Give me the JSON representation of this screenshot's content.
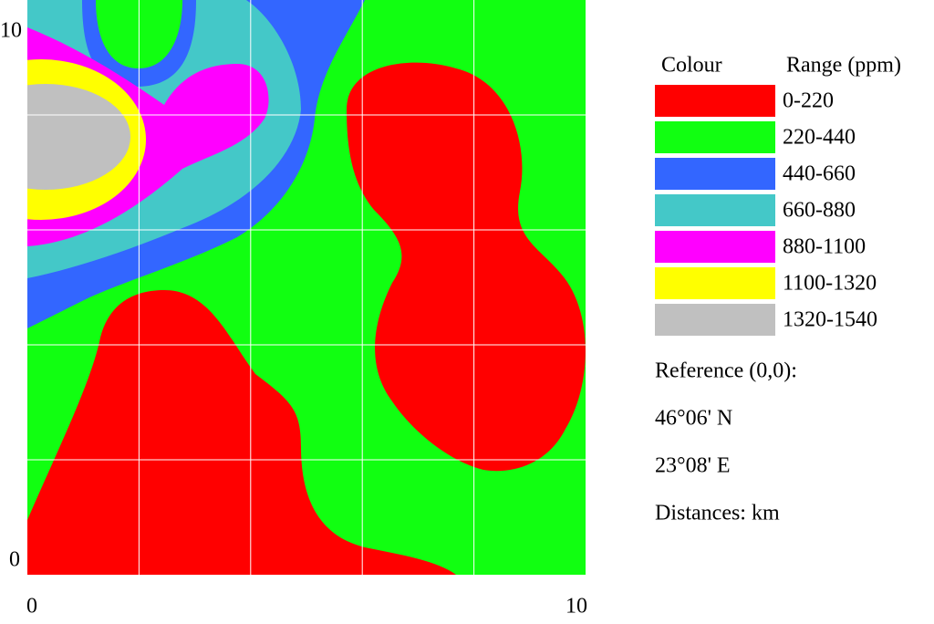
{
  "axes": {
    "xticks": [
      0,
      10
    ],
    "yticks": [
      0,
      10
    ]
  },
  "legend": {
    "colour_header": "Colour",
    "range_header": "Range (ppm)",
    "entries": [
      {
        "color": "#ff0000",
        "range": "0-220"
      },
      {
        "color": "#11ff11",
        "range": "220-440"
      },
      {
        "color": "#3366ff",
        "range": "440-660"
      },
      {
        "color": "#44c8c8",
        "range": "660-880"
      },
      {
        "color": "#ff00ff",
        "range": "880-1100"
      },
      {
        "color": "#ffff00",
        "range": "1100-1320"
      },
      {
        "color": "#c0c0c0",
        "range": "1320-1540"
      }
    ]
  },
  "notes": [
    "Reference (0,0):",
    "46°06' N",
    "23°08' E",
    "Distances: km"
  ]
}
